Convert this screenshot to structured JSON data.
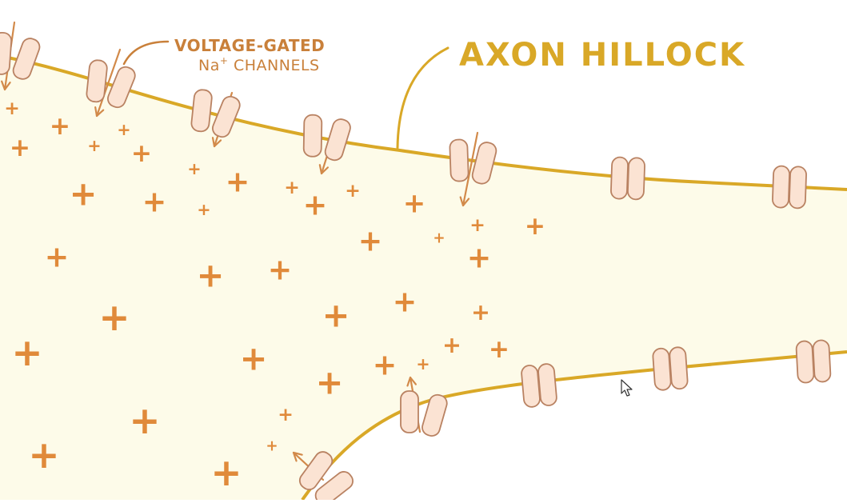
{
  "colors": {
    "background": "#ffffff",
    "cytoplasm": "#fdfbe9",
    "membrane": "#d9a827",
    "channel_fill": "#fbe3d3",
    "channel_stroke": "#b98262",
    "ion_plus": "#e08a3a",
    "arrow": "#d28a4a",
    "label_axon": "#d9a827",
    "label_channels": "#c9803a"
  },
  "labels": {
    "axon_hillock": "AXON HILLOCK",
    "channels_line1": "VOLTAGE-GATED",
    "channels_line2_base": "Na",
    "channels_line2_sup": "+",
    "channels_line2_rest": " CHANNELS"
  },
  "ion_symbol": "+",
  "icons": {
    "cursor": "mouse-pointer-icon"
  }
}
